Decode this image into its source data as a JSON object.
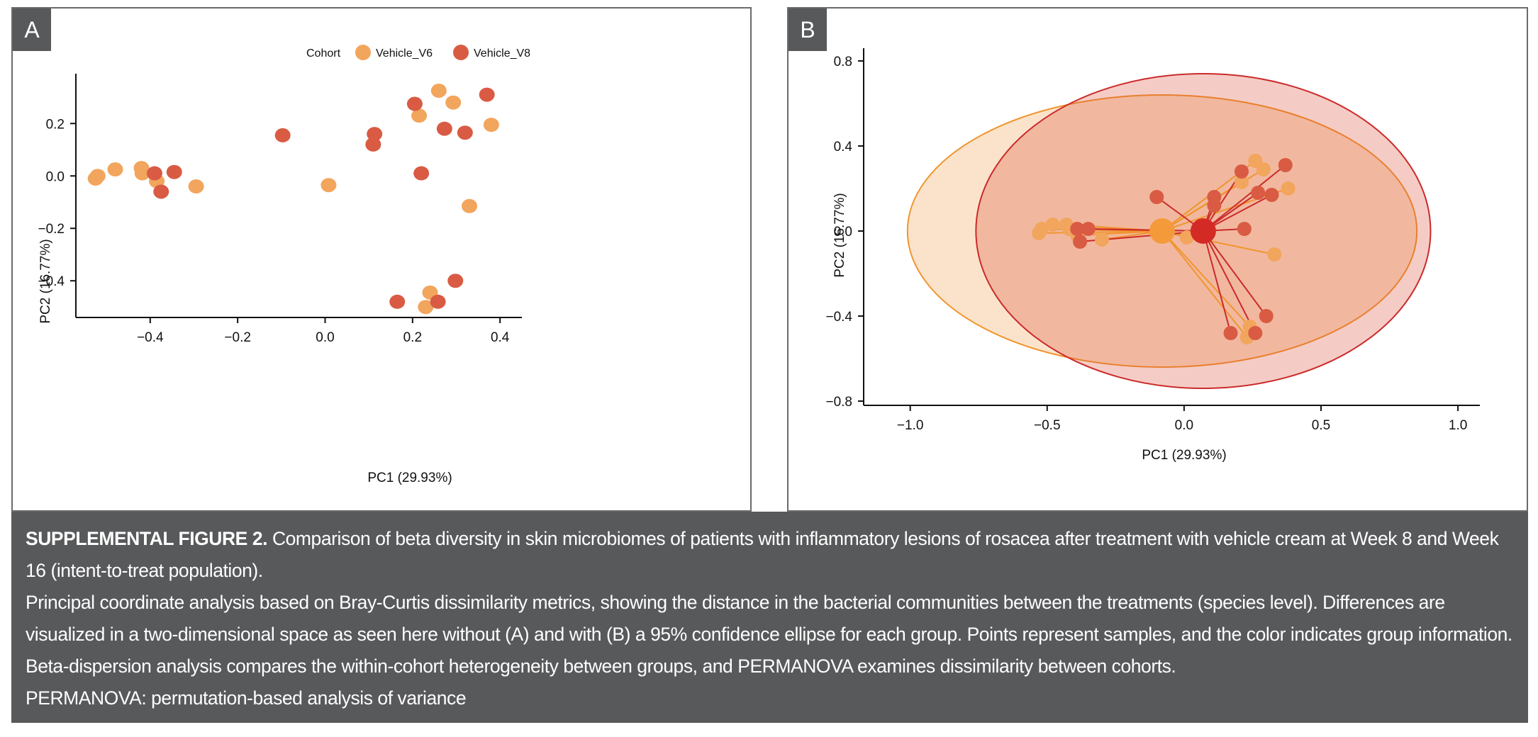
{
  "colors": {
    "v6": "#f2a55c",
    "v8": "#d95b43",
    "v6_line": "#f0952e",
    "v8_line": "#cc2a2a",
    "caption_bg": "#58595b",
    "tag_bg": "#58595b"
  },
  "panels": {
    "a_label": "A",
    "b_label": "B"
  },
  "chart_data": [
    {
      "type": "scatter",
      "panel": "A",
      "title": "",
      "xlabel": "PC1 (29.93%)",
      "ylabel": "PC2 (16.77%)",
      "xlim": [
        -0.57,
        0.45
      ],
      "ylim": [
        -0.54,
        0.39
      ],
      "xticks": [
        -0.4,
        -0.2,
        0.0,
        0.2,
        0.4
      ],
      "xtick_labels": [
        "−0.4",
        "−0.2",
        "0.0",
        "0.2",
        "0.4"
      ],
      "yticks": [
        0.2,
        0.0,
        -0.2,
        -0.4
      ],
      "ytick_labels": [
        "0.2",
        "0.0",
        "−0.2",
        "−0.4"
      ],
      "legend": {
        "title": "Cohort",
        "placement": "top",
        "entries": [
          "Vehicle_V6",
          "Vehicle_V8"
        ]
      },
      "series": [
        {
          "name": "Vehicle_V6",
          "x": [
            -0.52,
            -0.525,
            -0.48,
            -0.42,
            -0.418,
            -0.385,
            -0.295,
            0.008,
            0.215,
            0.26,
            0.293,
            0.38,
            0.33,
            0.24,
            0.23
          ],
          "y": [
            0.0,
            -0.01,
            0.025,
            0.03,
            0.01,
            -0.02,
            -0.04,
            -0.035,
            0.23,
            0.325,
            0.28,
            0.195,
            -0.115,
            -0.445,
            -0.5
          ]
        },
        {
          "name": "Vehicle_V8",
          "x": [
            -0.39,
            -0.375,
            -0.345,
            -0.097,
            0.113,
            0.11,
            0.205,
            0.22,
            0.273,
            0.32,
            0.37,
            0.298,
            0.165,
            0.258
          ],
          "y": [
            0.01,
            -0.06,
            0.015,
            0.155,
            0.16,
            0.12,
            0.275,
            0.01,
            0.18,
            0.165,
            0.31,
            -0.4,
            -0.48,
            -0.48
          ]
        }
      ]
    },
    {
      "type": "scatter",
      "panel": "B",
      "title": "",
      "xlabel": "PC1 (29.93%)",
      "ylabel": "PC2 (16.77%)",
      "xlim": [
        -1.17,
        1.08
      ],
      "ylim": [
        -0.82,
        0.86
      ],
      "xticks": [
        -1.0,
        -0.5,
        0.0,
        0.5,
        1.0
      ],
      "xtick_labels": [
        "−1.0",
        "−0.5",
        "0.0",
        "0.5",
        "1.0"
      ],
      "yticks": [
        0.8,
        0.4,
        0.0,
        -0.4,
        -0.8
      ],
      "ytick_labels": [
        "0.8",
        "0.4",
        "0.0",
        "−0.4",
        "−0.8"
      ],
      "ellipses": [
        {
          "series": "Vehicle_V6",
          "confidence": 0.95,
          "center": [
            -0.08,
            0.0
          ],
          "radius_x": 0.93,
          "radius_y": 0.64
        },
        {
          "series": "Vehicle_V8",
          "confidence": 0.95,
          "center": [
            0.07,
            0.0
          ],
          "radius_x": 0.83,
          "radius_y": 0.74
        }
      ],
      "centroids": [
        {
          "series": "Vehicle_V6",
          "x": -0.08,
          "y": 0.0
        },
        {
          "series": "Vehicle_V8",
          "x": 0.07,
          "y": 0.0
        }
      ],
      "series": [
        {
          "name": "Vehicle_V6",
          "x": [
            -0.53,
            -0.52,
            -0.48,
            -0.43,
            -0.42,
            -0.39,
            -0.3,
            0.01,
            0.21,
            0.26,
            0.29,
            0.38,
            0.33,
            0.24,
            0.23
          ],
          "y": [
            -0.01,
            0.01,
            0.03,
            0.03,
            0.01,
            -0.02,
            -0.04,
            -0.03,
            0.23,
            0.33,
            0.29,
            0.2,
            -0.11,
            -0.45,
            -0.5
          ]
        },
        {
          "name": "Vehicle_V8",
          "x": [
            -0.39,
            -0.38,
            -0.35,
            -0.1,
            0.11,
            0.11,
            0.21,
            0.22,
            0.27,
            0.32,
            0.37,
            0.3,
            0.17,
            0.26
          ],
          "y": [
            0.01,
            -0.05,
            0.01,
            0.16,
            0.16,
            0.12,
            0.28,
            0.01,
            0.18,
            0.17,
            0.31,
            -0.4,
            -0.48,
            -0.48
          ]
        }
      ]
    }
  ],
  "caption": {
    "title": "SUPPLEMENTAL FIGURE 2.",
    "line1": "Comparison of beta diversity in skin microbiomes of patients with inflammatory lesions of rosacea after treatment with vehicle cream at Week 8 and Week 16 (intent-to-treat population).",
    "line2": "Principal coordinate analysis based on Bray-Curtis dissimilarity metrics, showing the distance in the bacterial communities between the treatments (species level). Differences are visualized in a two-dimensional space as seen here without (A) and with (B) a 95% confidence ellipse for each group. Points represent samples, and the color indicates group information. Beta-dispersion analysis compares the within-cohort heterogeneity between groups, and PERMANOVA examines dissimilarity between cohorts.",
    "line3": "PERMANOVA: permutation-based analysis of variance"
  }
}
